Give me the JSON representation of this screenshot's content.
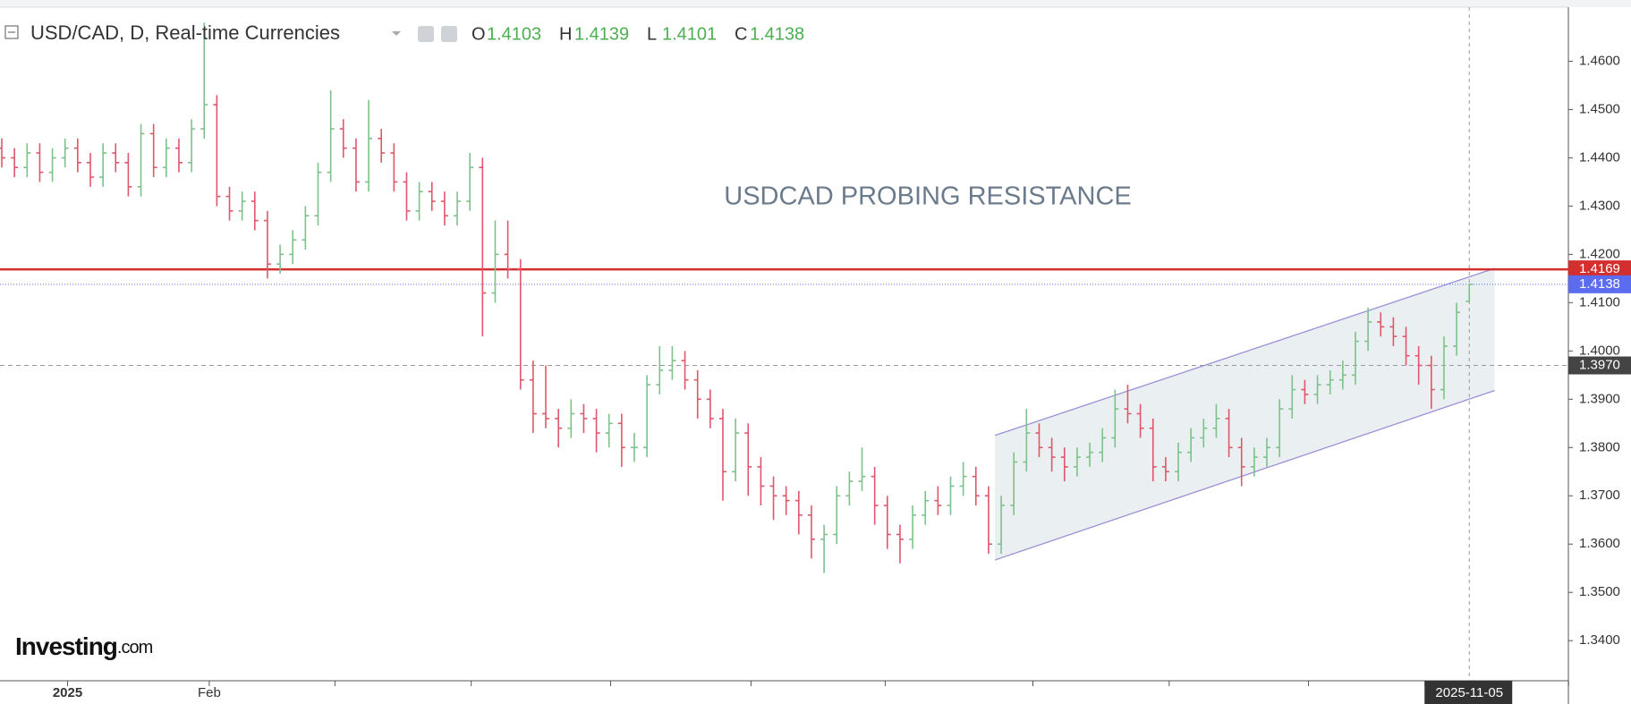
{
  "chart_data": {
    "type": "ohlc",
    "title": "USD/CAD, D, Real-time Currencies",
    "annotation": "USDCAD PROBING RESISTANCE",
    "logo": {
      "main": "Investing",
      "suffix": ".com"
    },
    "ohlc_labels": [
      "O",
      "H",
      "L",
      "C"
    ],
    "up_color": "#7cc28a",
    "down_color": "#e0566a",
    "ylim": [
      1.3317,
      1.4712
    ],
    "yticks": [
      {
        "value": 1.34,
        "label": "1.3400"
      },
      {
        "value": 1.35,
        "label": "1.3500"
      },
      {
        "value": 1.36,
        "label": "1.3600"
      },
      {
        "value": 1.37,
        "label": "1.3700"
      },
      {
        "value": 1.38,
        "label": "1.3800"
      },
      {
        "value": 1.39,
        "label": "1.3900"
      },
      {
        "value": 1.4,
        "label": "1.4000"
      },
      {
        "value": 1.41,
        "label": "1.4100"
      },
      {
        "value": 1.42,
        "label": "1.4200"
      },
      {
        "value": 1.43,
        "label": "1.4300"
      },
      {
        "value": 1.44,
        "label": "1.4400"
      },
      {
        "value": 1.45,
        "label": "1.4500"
      },
      {
        "value": 1.46,
        "label": "1.4600"
      }
    ],
    "xticks": [
      {
        "value": 5.2,
        "label": "2025"
      },
      {
        "value": 16.4,
        "label": "Feb"
      },
      {
        "value": 116,
        "label": "2025-11-05"
      }
    ],
    "levels": [
      {
        "value": 1.4169,
        "label": "1.4169",
        "color": "#d32f2f",
        "style": "solid"
      },
      {
        "value": 1.4138,
        "label": "1.4138",
        "color": "#5b6cf0",
        "style": "dotted"
      },
      {
        "value": 1.397,
        "label": "1.3970",
        "color": "#444444",
        "style": "dashed"
      }
    ],
    "channel": {
      "x": [
        78.5,
        118
      ],
      "upper": [
        1.3825,
        1.4171
      ],
      "lower": [
        1.3567,
        1.3918
      ],
      "color": "#9c8fd6"
    },
    "ohlc": [
      [
        1.442,
        1.444,
        1.438,
        1.44
      ],
      [
        1.44,
        1.442,
        1.436,
        1.438
      ],
      [
        1.438,
        1.443,
        1.436,
        1.441
      ],
      [
        1.441,
        1.443,
        1.435,
        1.437
      ],
      [
        1.437,
        1.442,
        1.435,
        1.44
      ],
      [
        1.44,
        1.444,
        1.438,
        1.442
      ],
      [
        1.442,
        1.444,
        1.437,
        1.439
      ],
      [
        1.439,
        1.441,
        1.434,
        1.436
      ],
      [
        1.436,
        1.443,
        1.434,
        1.441
      ],
      [
        1.441,
        1.443,
        1.437,
        1.439
      ],
      [
        1.439,
        1.441,
        1.432,
        1.434
      ],
      [
        1.434,
        1.447,
        1.432,
        1.445
      ],
      [
        1.445,
        1.447,
        1.436,
        1.438
      ],
      [
        1.438,
        1.444,
        1.436,
        1.442
      ],
      [
        1.442,
        1.444,
        1.437,
        1.439
      ],
      [
        1.439,
        1.448,
        1.437,
        1.446
      ],
      [
        1.446,
        1.468,
        1.444,
        1.451
      ],
      [
        1.451,
        1.453,
        1.43,
        1.432
      ],
      [
        1.432,
        1.434,
        1.427,
        1.429
      ],
      [
        1.429,
        1.433,
        1.427,
        1.431
      ],
      [
        1.431,
        1.433,
        1.425,
        1.427
      ],
      [
        1.427,
        1.429,
        1.415,
        1.418
      ],
      [
        1.418,
        1.422,
        1.416,
        1.42
      ],
      [
        1.42,
        1.425,
        1.418,
        1.423
      ],
      [
        1.423,
        1.43,
        1.421,
        1.428
      ],
      [
        1.428,
        1.439,
        1.426,
        1.437
      ],
      [
        1.437,
        1.454,
        1.435,
        1.446
      ],
      [
        1.446,
        1.448,
        1.44,
        1.442
      ],
      [
        1.442,
        1.444,
        1.433,
        1.435
      ],
      [
        1.435,
        1.452,
        1.433,
        1.444
      ],
      [
        1.444,
        1.446,
        1.439,
        1.441
      ],
      [
        1.441,
        1.443,
        1.433,
        1.435
      ],
      [
        1.435,
        1.437,
        1.427,
        1.429
      ],
      [
        1.429,
        1.435,
        1.427,
        1.433
      ],
      [
        1.433,
        1.435,
        1.429,
        1.431
      ],
      [
        1.431,
        1.433,
        1.426,
        1.428
      ],
      [
        1.428,
        1.433,
        1.426,
        1.431
      ],
      [
        1.431,
        1.441,
        1.429,
        1.438
      ],
      [
        1.438,
        1.44,
        1.403,
        1.412
      ],
      [
        1.412,
        1.427,
        1.41,
        1.42
      ],
      [
        1.42,
        1.427,
        1.415,
        1.417
      ],
      [
        1.417,
        1.419,
        1.392,
        1.394
      ],
      [
        1.394,
        1.398,
        1.383,
        1.387
      ],
      [
        1.387,
        1.397,
        1.384,
        1.386
      ],
      [
        1.386,
        1.388,
        1.38,
        1.384
      ],
      [
        1.384,
        1.39,
        1.382,
        1.387
      ],
      [
        1.387,
        1.389,
        1.383,
        1.386
      ],
      [
        1.386,
        1.388,
        1.379,
        1.383
      ],
      [
        1.383,
        1.387,
        1.38,
        1.385
      ],
      [
        1.385,
        1.387,
        1.376,
        1.38
      ],
      [
        1.38,
        1.383,
        1.377,
        1.38
      ],
      [
        1.38,
        1.395,
        1.378,
        1.393
      ],
      [
        1.393,
        1.401,
        1.391,
        1.396
      ],
      [
        1.396,
        1.401,
        1.394,
        1.398
      ],
      [
        1.398,
        1.4,
        1.392,
        1.394
      ],
      [
        1.394,
        1.396,
        1.386,
        1.39
      ],
      [
        1.39,
        1.392,
        1.384,
        1.386
      ],
      [
        1.386,
        1.388,
        1.369,
        1.375
      ],
      [
        1.375,
        1.386,
        1.373,
        1.383
      ],
      [
        1.383,
        1.385,
        1.37,
        1.376
      ],
      [
        1.376,
        1.378,
        1.368,
        1.372
      ],
      [
        1.372,
        1.374,
        1.365,
        1.37
      ],
      [
        1.37,
        1.372,
        1.366,
        1.369
      ],
      [
        1.369,
        1.371,
        1.362,
        1.366
      ],
      [
        1.366,
        1.368,
        1.357,
        1.361
      ],
      [
        1.361,
        1.364,
        1.354,
        1.362
      ],
      [
        1.362,
        1.372,
        1.36,
        1.37
      ],
      [
        1.37,
        1.375,
        1.368,
        1.373
      ],
      [
        1.373,
        1.38,
        1.371,
        1.374
      ],
      [
        1.374,
        1.376,
        1.364,
        1.368
      ],
      [
        1.368,
        1.37,
        1.359,
        1.362
      ],
      [
        1.362,
        1.364,
        1.356,
        1.361
      ],
      [
        1.361,
        1.368,
        1.359,
        1.366
      ],
      [
        1.366,
        1.371,
        1.364,
        1.369
      ],
      [
        1.369,
        1.372,
        1.366,
        1.368
      ],
      [
        1.368,
        1.374,
        1.366,
        1.372
      ],
      [
        1.372,
        1.377,
        1.37,
        1.374
      ],
      [
        1.374,
        1.376,
        1.368,
        1.37
      ],
      [
        1.37,
        1.372,
        1.358,
        1.36
      ],
      [
        1.36,
        1.37,
        1.358,
        1.368
      ],
      [
        1.368,
        1.379,
        1.366,
        1.377
      ],
      [
        1.377,
        1.388,
        1.375,
        1.383
      ],
      [
        1.383,
        1.385,
        1.378,
        1.38
      ],
      [
        1.38,
        1.382,
        1.375,
        1.378
      ],
      [
        1.378,
        1.38,
        1.373,
        1.376
      ],
      [
        1.376,
        1.38,
        1.374,
        1.378
      ],
      [
        1.378,
        1.381,
        1.376,
        1.379
      ],
      [
        1.379,
        1.384,
        1.377,
        1.382
      ],
      [
        1.382,
        1.392,
        1.38,
        1.388
      ],
      [
        1.388,
        1.393,
        1.385,
        1.387
      ],
      [
        1.387,
        1.389,
        1.382,
        1.384
      ],
      [
        1.384,
        1.386,
        1.373,
        1.376
      ],
      [
        1.376,
        1.378,
        1.373,
        1.375
      ],
      [
        1.375,
        1.381,
        1.373,
        1.379
      ],
      [
        1.379,
        1.384,
        1.377,
        1.382
      ],
      [
        1.382,
        1.386,
        1.38,
        1.384
      ],
      [
        1.384,
        1.389,
        1.382,
        1.386
      ],
      [
        1.386,
        1.388,
        1.378,
        1.38
      ],
      [
        1.38,
        1.382,
        1.372,
        1.376
      ],
      [
        1.376,
        1.38,
        1.374,
        1.378
      ],
      [
        1.378,
        1.382,
        1.376,
        1.38
      ],
      [
        1.38,
        1.39,
        1.378,
        1.388
      ],
      [
        1.388,
        1.395,
        1.386,
        1.392
      ],
      [
        1.392,
        1.394,
        1.389,
        1.391
      ],
      [
        1.391,
        1.395,
        1.389,
        1.393
      ],
      [
        1.393,
        1.396,
        1.391,
        1.394
      ],
      [
        1.394,
        1.398,
        1.392,
        1.395
      ],
      [
        1.395,
        1.404,
        1.393,
        1.402
      ],
      [
        1.402,
        1.409,
        1.4,
        1.406
      ],
      [
        1.406,
        1.408,
        1.403,
        1.405
      ],
      [
        1.405,
        1.407,
        1.401,
        1.403
      ],
      [
        1.403,
        1.405,
        1.397,
        1.399
      ],
      [
        1.399,
        1.401,
        1.393,
        1.397
      ],
      [
        1.397,
        1.399,
        1.388,
        1.392
      ],
      [
        1.392,
        1.403,
        1.39,
        1.401
      ],
      [
        1.401,
        1.41,
        1.399,
        1.408
      ],
      [
        1.4103,
        1.4139,
        1.4101,
        1.4138
      ]
    ]
  }
}
